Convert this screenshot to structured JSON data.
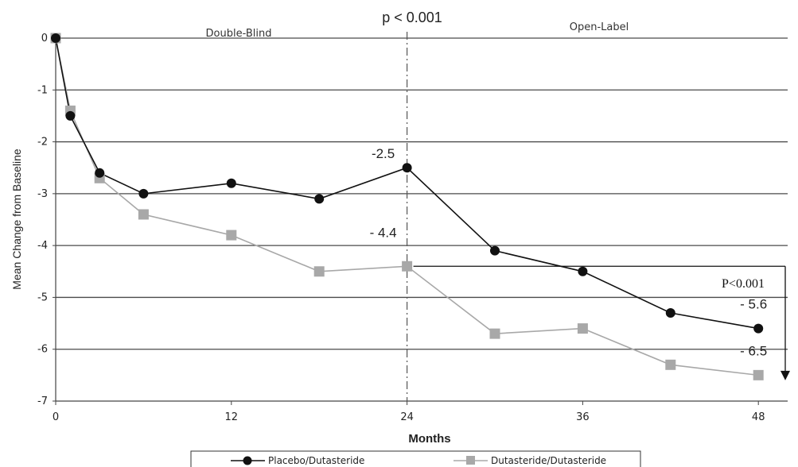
{
  "chart_data": {
    "type": "line",
    "xlabel": "Months",
    "ylabel": "Mean Change from Baseline",
    "xlim": [
      0,
      50
    ],
    "ylim": [
      -7,
      0
    ],
    "xticks": [
      0,
      12,
      24,
      36,
      48
    ],
    "yticks": [
      0,
      -1,
      -2,
      -3,
      -4,
      -5,
      -6,
      -7
    ],
    "grid": "horizontal",
    "legend_position": "bottom",
    "period_labels": [
      "Double-Blind",
      "Open-Label"
    ],
    "divider_x": 24,
    "top_annotation": "p < 0.001",
    "series": [
      {
        "name": "Placebo/Dutasteride",
        "color": "#111111",
        "marker": "circle",
        "x": [
          0,
          1,
          3,
          6,
          12,
          18,
          24,
          30,
          36,
          42,
          48
        ],
        "y": [
          0,
          -1.5,
          -2.6,
          -3.0,
          -2.8,
          -3.1,
          -2.5,
          -4.1,
          -4.5,
          -5.3,
          -5.6
        ]
      },
      {
        "name": "Dutasteride/Dutasteride",
        "color": "#a8a8a8",
        "marker": "square",
        "x": [
          0,
          1,
          3,
          6,
          12,
          18,
          24,
          30,
          36,
          42,
          48
        ],
        "y": [
          0,
          -1.4,
          -2.7,
          -3.4,
          -3.8,
          -4.5,
          -4.4,
          -5.7,
          -5.6,
          -6.3,
          -6.5
        ]
      }
    ],
    "annotations": [
      {
        "text": "-2.5",
        "x": 24,
        "y": -2.5
      },
      {
        "text": "- 4.4",
        "x": 24,
        "y": -4.4
      },
      {
        "text": "- 5.6",
        "x": 48,
        "y": -5.6
      },
      {
        "text": "- 6.5",
        "x": 48,
        "y": -6.5
      }
    ],
    "comparison_label": "P<0.001"
  }
}
